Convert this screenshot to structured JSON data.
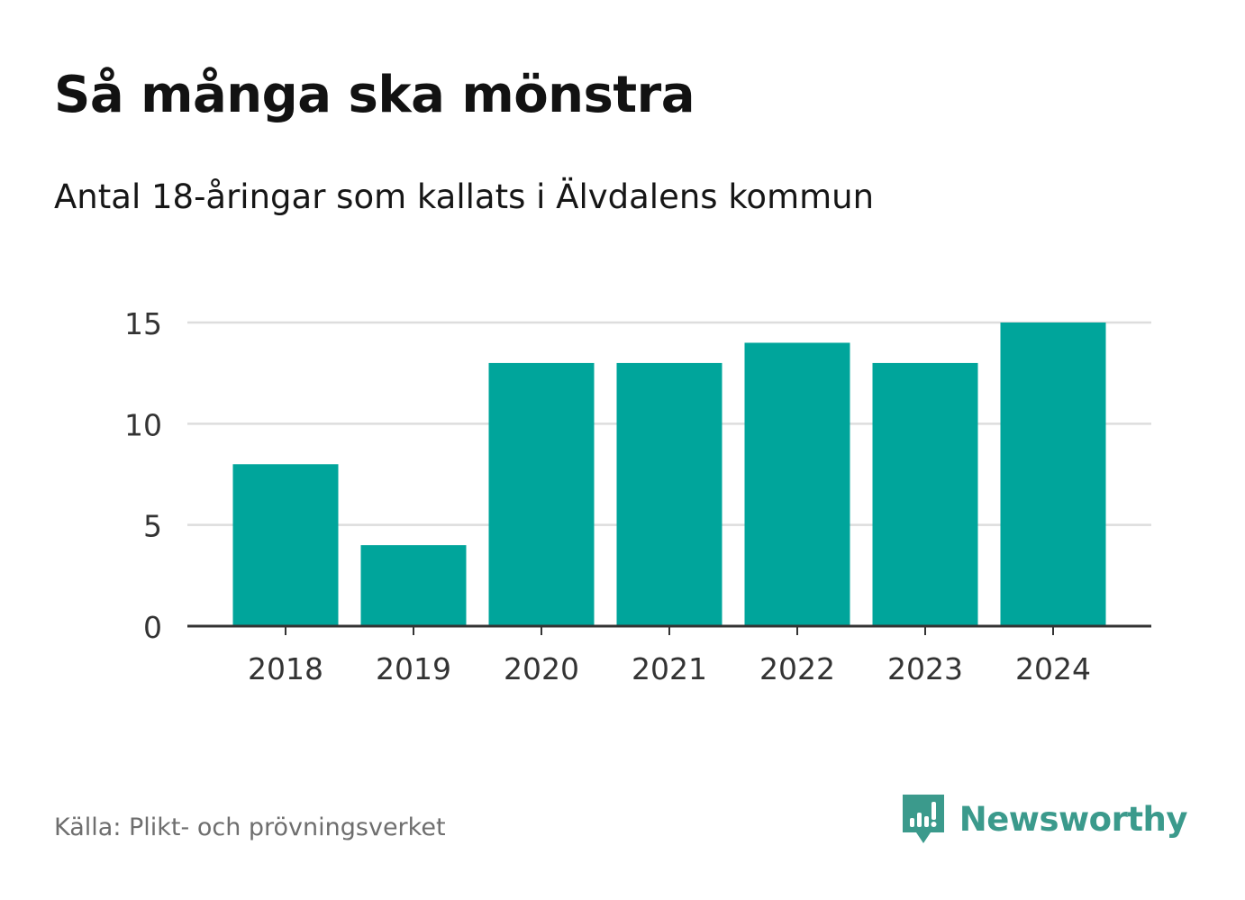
{
  "header": {
    "title": "Så många ska mönstra",
    "subtitle": "Antal 18-åringar som kallats i Älvdalens kommun"
  },
  "footer": {
    "source": "Källa: Plikt- och prövningsverket",
    "brand_name": "Newsworthy"
  },
  "colors": {
    "bar": "#00a59b",
    "gridline": "#dddddd",
    "axis": "#333333",
    "tick_text": "#333333",
    "brand": "#3b9a8c",
    "source_text": "#6e6e6e"
  },
  "icons": {
    "brand_logo": "newsworthy-logo-icon"
  },
  "chart_data": {
    "type": "bar",
    "title": "Så många ska mönstra",
    "subtitle": "Antal 18-åringar som kallats i Älvdalens kommun",
    "categories": [
      "2018",
      "2019",
      "2020",
      "2021",
      "2022",
      "2023",
      "2024"
    ],
    "values": [
      8,
      4,
      13,
      13,
      14,
      13,
      15
    ],
    "xlabel": "",
    "ylabel": "",
    "ylim": [
      0,
      15
    ],
    "yticks": [
      0,
      5,
      10,
      15
    ],
    "grid": true,
    "legend": "none"
  }
}
